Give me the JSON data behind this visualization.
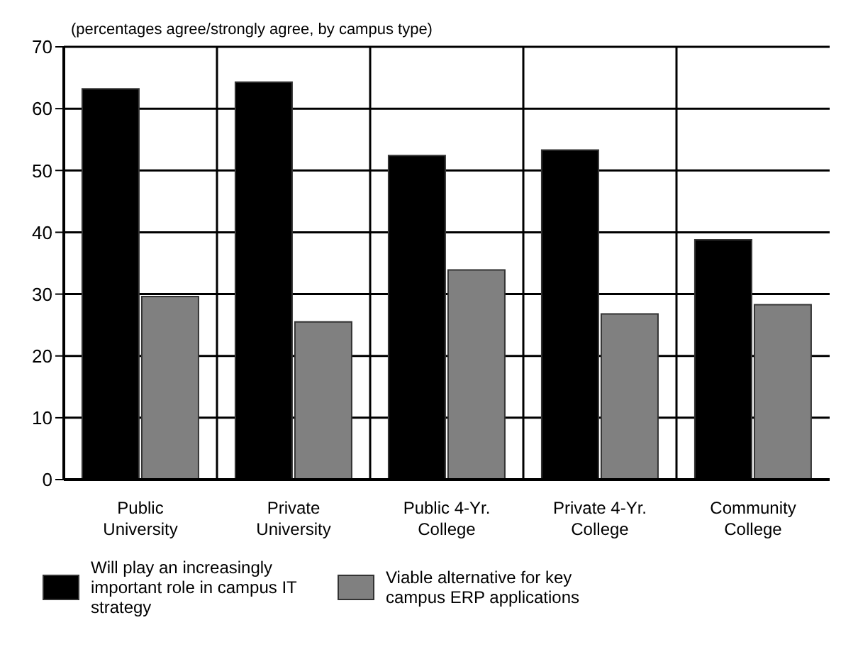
{
  "chart_data": {
    "type": "bar",
    "title": "(percentages agree/strongly agree, by campus type)",
    "categories": [
      "Public University",
      "Private University",
      "Public 4-Yr. College",
      "Private 4-Yr. College",
      "Community College"
    ],
    "series": [
      {
        "name": "Will play an increasingly important role in campus IT strategy",
        "color": "#000000",
        "values": [
          63.2,
          64.3,
          52.4,
          53.3,
          38.8
        ]
      },
      {
        "name": "Viable alternative for key campus ERP applications",
        "color": "#808080",
        "values": [
          29.6,
          25.5,
          33.9,
          26.8,
          28.3
        ]
      }
    ],
    "ylim": [
      0,
      70
    ],
    "yticks": [
      0,
      10,
      20,
      30,
      40,
      50,
      60,
      70
    ],
    "grid": true,
    "legend": "bottom"
  }
}
